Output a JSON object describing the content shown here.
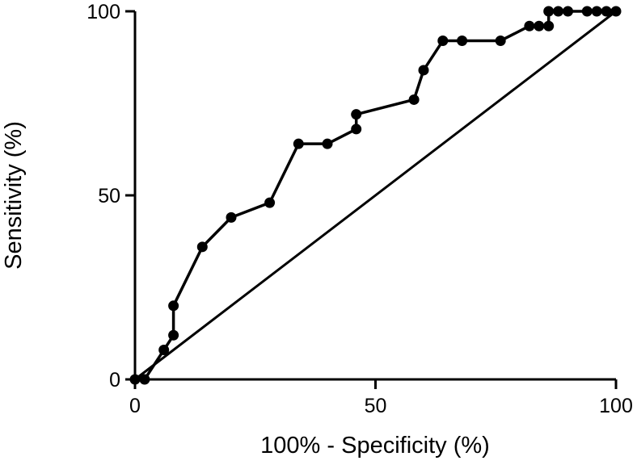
{
  "chart_data": {
    "type": "line",
    "title": "",
    "xlabel": "100% - Specificity (%)",
    "ylabel": "Sensitivity (%)",
    "xlim": [
      0,
      100
    ],
    "ylim": [
      0,
      100
    ],
    "x_ticks": [
      "0",
      "50",
      "100"
    ],
    "y_ticks": [
      "0",
      "50",
      "100"
    ],
    "grid": false,
    "legend": "none",
    "series": [
      {
        "x": [
          0,
          2,
          6,
          8,
          8,
          14,
          20,
          28,
          34,
          40,
          46,
          46,
          58,
          60,
          64,
          68,
          76,
          82,
          84,
          86,
          86,
          88,
          90,
          94,
          96,
          98,
          100
        ],
        "y": [
          0,
          0,
          8,
          12,
          20,
          36,
          44,
          48,
          64,
          64,
          68,
          72,
          76,
          84,
          92,
          92,
          92,
          96,
          96,
          96,
          100,
          100,
          100,
          100,
          100,
          100,
          100
        ],
        "markers": true,
        "color": "#000000"
      },
      {
        "x": [
          0,
          100
        ],
        "y": [
          0,
          100
        ],
        "markers": false,
        "color": "#000000"
      }
    ]
  }
}
